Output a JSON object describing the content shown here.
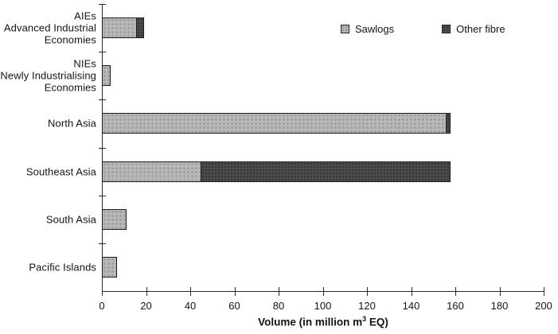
{
  "chart_data": {
    "type": "bar",
    "orientation": "horizontal",
    "title": "",
    "xlabel": "Volume (in million m3 EQ)",
    "xlabel_prefix": "Volume (in million m",
    "xlabel_sup": "3",
    "xlabel_suffix": " EQ)",
    "xlim": [
      0,
      200
    ],
    "xticks": [
      0,
      20,
      40,
      60,
      80,
      100,
      120,
      140,
      160,
      180,
      200
    ],
    "grid": false,
    "legend_position": "top-right",
    "categories": [
      "AIEs Advanced Industrial Economies",
      "NIEs Newly Industrialising Economies",
      "North Asia",
      "Southeast Asia",
      "South Asia",
      "Pacific Islands"
    ],
    "category_lines": [
      [
        "AIEs",
        "Advanced Industrial",
        "Economies"
      ],
      [
        "NIEs",
        "Newly Industrialising",
        "Economies"
      ],
      [
        "North Asia"
      ],
      [
        "Southeast Asia"
      ],
      [
        "South Asia"
      ],
      [
        "Pacific Islands"
      ]
    ],
    "series": [
      {
        "name": "Sawlogs",
        "color": "#b8b8b8",
        "values": [
          16,
          4,
          156,
          45,
          11,
          7
        ]
      },
      {
        "name": "Other fibre",
        "color": "#4d4d4d",
        "values": [
          3,
          0,
          2,
          113,
          0,
          0
        ]
      }
    ]
  },
  "colors": {
    "sawlogs": "#b8b8b8",
    "other_fibre": "#4d4d4d",
    "axis": "#2b2b2b",
    "text": "#141414",
    "background": "#ffffff"
  }
}
